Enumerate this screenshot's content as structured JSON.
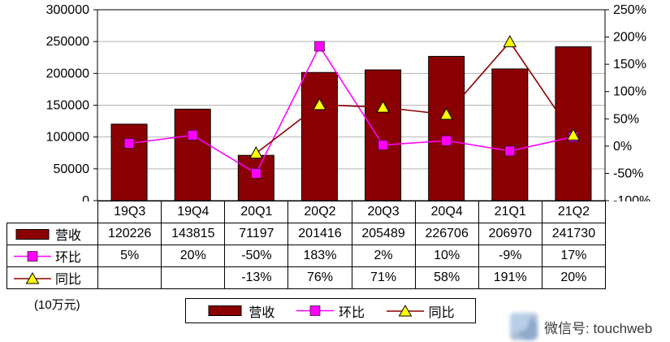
{
  "unit_label": "(10万元)",
  "watermark": {
    "text": "微信号: touchweb"
  },
  "chart_data": {
    "type": "combo",
    "categories": [
      "19Q3",
      "19Q4",
      "20Q1",
      "20Q2",
      "20Q3",
      "20Q4",
      "21Q1",
      "21Q2"
    ],
    "series": [
      {
        "name": "营收",
        "type": "bar",
        "axis": "left",
        "color": "#8B0000",
        "values": [
          120226,
          143815,
          71197,
          201416,
          205489,
          226706,
          206970,
          241730
        ]
      },
      {
        "name": "环比",
        "type": "line",
        "axis": "right",
        "color": "#FF00FF",
        "marker": "square",
        "unit": "%",
        "values": [
          5,
          20,
          -50,
          183,
          2,
          10,
          -9,
          17
        ]
      },
      {
        "name": "同比",
        "type": "line",
        "axis": "right",
        "color": "#8B0000",
        "marker": "triangle",
        "marker_color": "#FFFF00",
        "unit": "%",
        "values": [
          null,
          null,
          -13,
          76,
          71,
          58,
          191,
          20
        ]
      }
    ],
    "left_axis": {
      "min": 0,
      "max": 300000,
      "step": 50000,
      "ticks": [
        "0",
        "50000",
        "100000",
        "150000",
        "200000",
        "250000",
        "300000"
      ]
    },
    "right_axis": {
      "min": -100,
      "max": 250,
      "step": 50,
      "ticks": [
        "-100%",
        "-50%",
        "0%",
        "50%",
        "100%",
        "150%",
        "200%",
        "250%"
      ]
    },
    "grid": true,
    "legend_position": "bottom"
  },
  "table": {
    "header": [
      "19Q3",
      "19Q4",
      "20Q1",
      "20Q2",
      "20Q3",
      "20Q4",
      "21Q1",
      "21Q2"
    ],
    "rows": [
      {
        "label": "营收",
        "symbol": "bar",
        "cells": [
          "120226",
          "143815",
          "71197",
          "201416",
          "205489",
          "226706",
          "206970",
          "241730"
        ]
      },
      {
        "label": "环比",
        "symbol": "square",
        "cells": [
          "5%",
          "20%",
          "-50%",
          "183%",
          "2%",
          "10%",
          "-9%",
          "17%"
        ]
      },
      {
        "label": "同比",
        "symbol": "triangle",
        "cells": [
          "",
          "",
          "-13%",
          "76%",
          "71%",
          "58%",
          "191%",
          "20%"
        ]
      }
    ]
  },
  "legend": {
    "items": [
      {
        "label": "营收",
        "symbol": "bar"
      },
      {
        "label": "环比",
        "symbol": "square"
      },
      {
        "label": "同比",
        "symbol": "triangle"
      }
    ]
  }
}
